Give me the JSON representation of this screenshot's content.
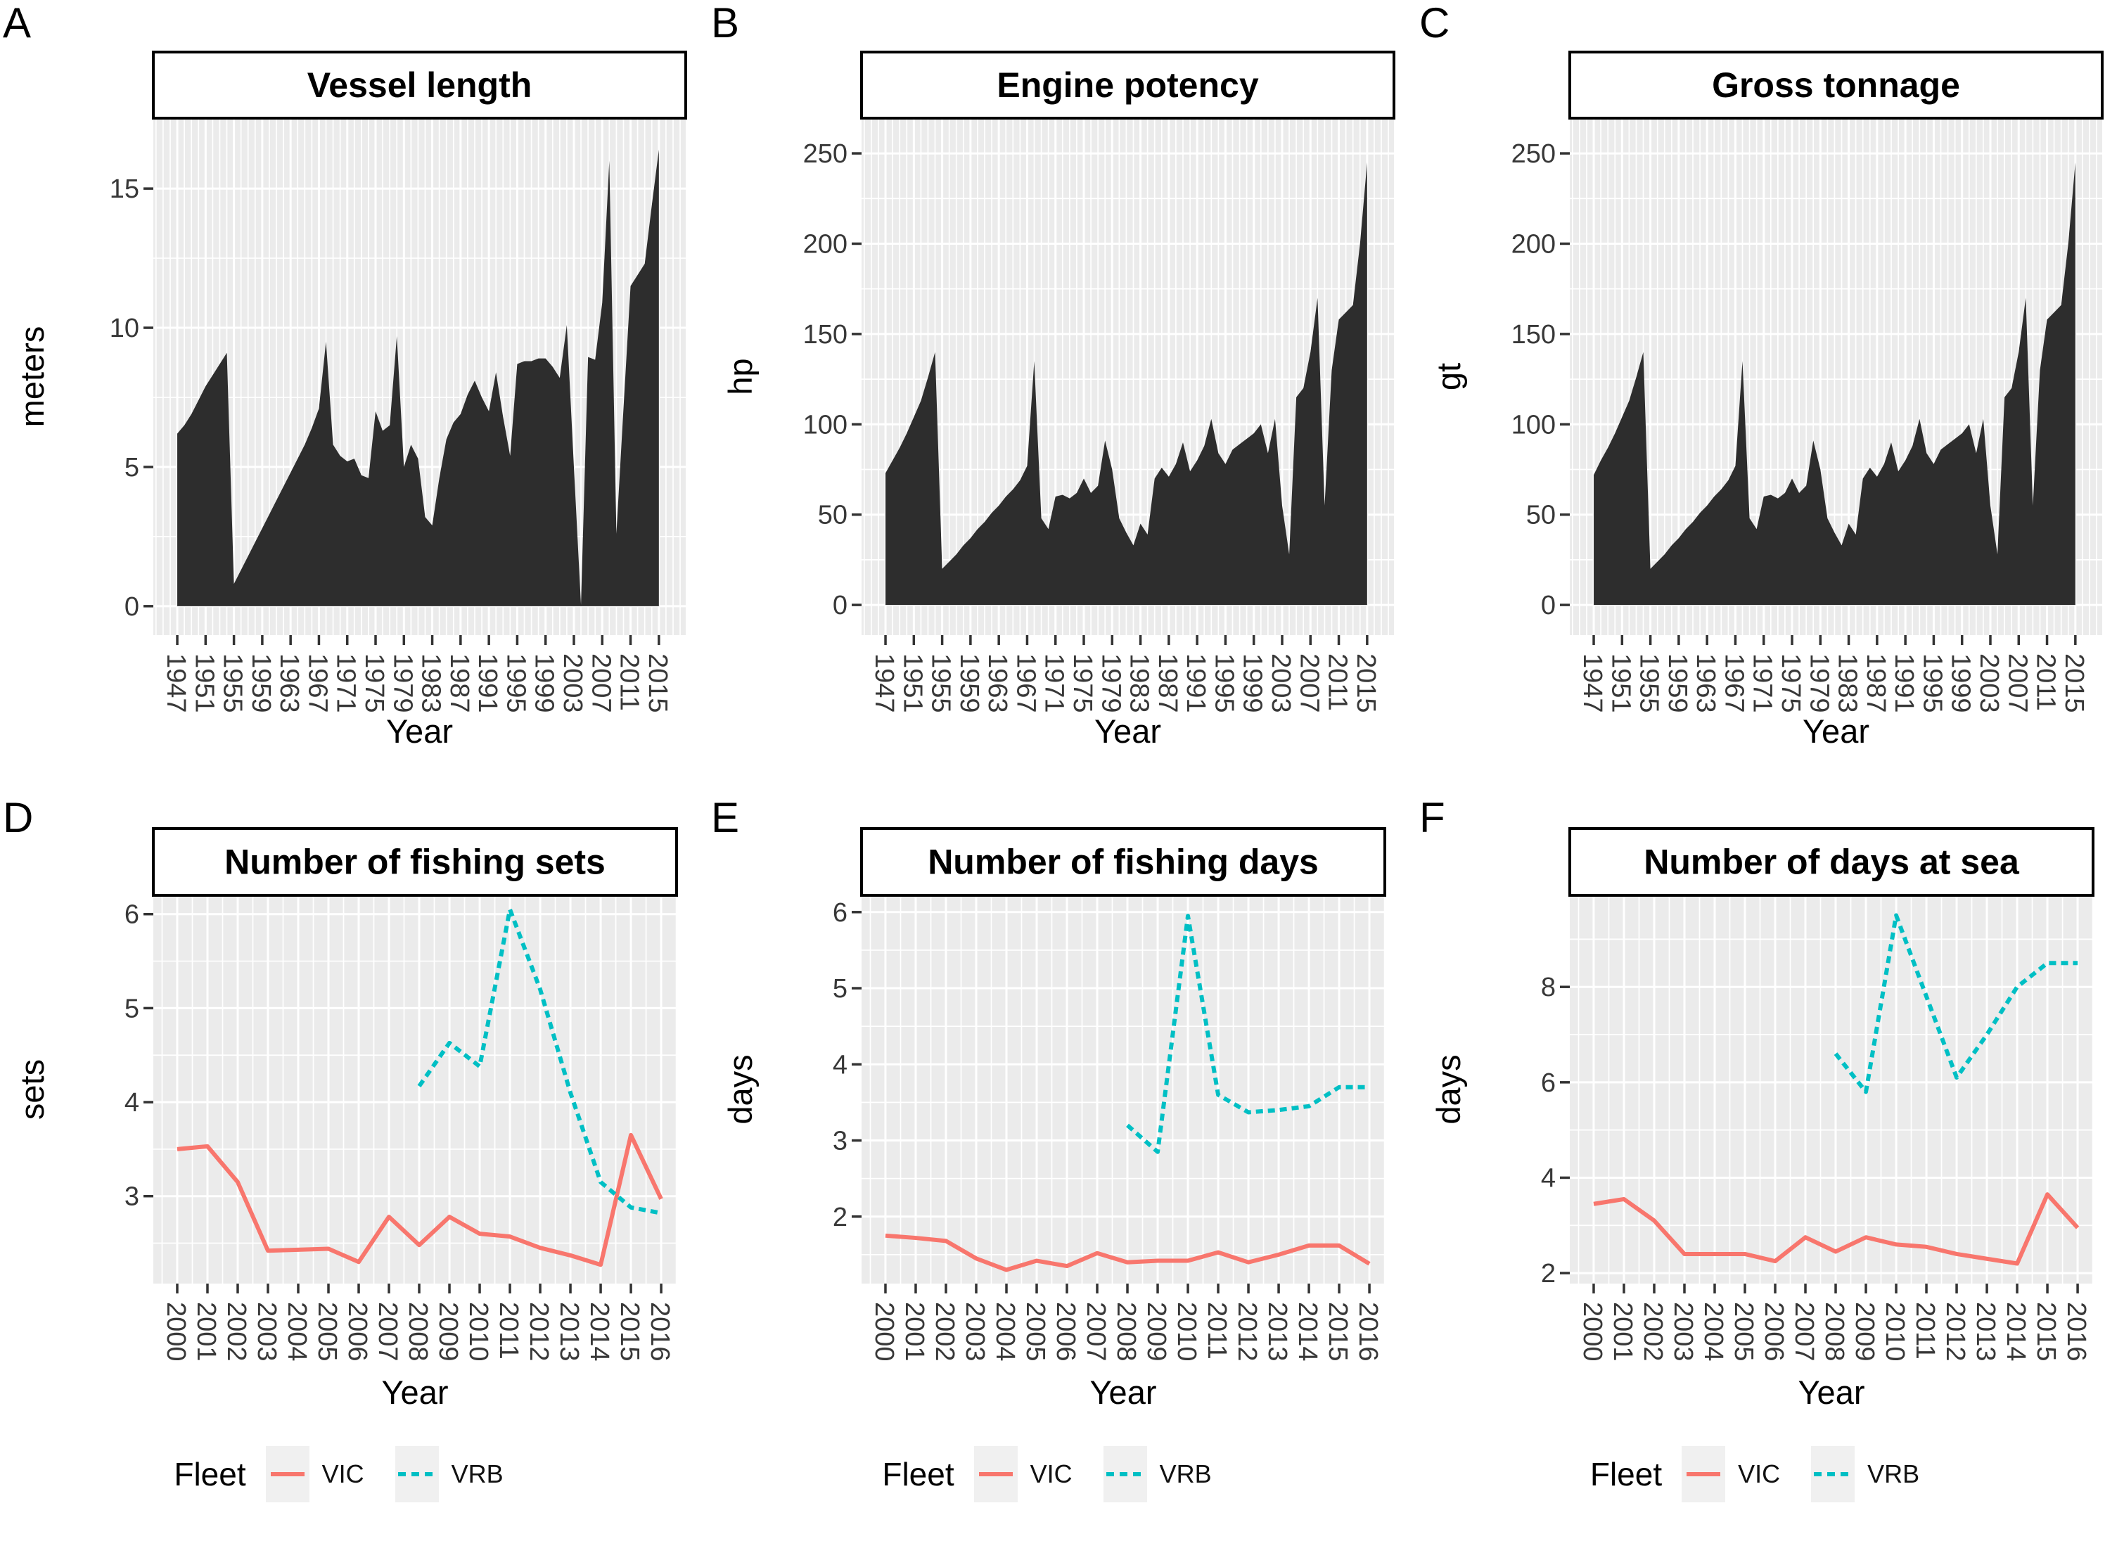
{
  "palette": {
    "area_fill": "#2d2d2d",
    "panel_bg": "#ebebeb",
    "grid": "#ffffff",
    "strip_bg": "#ffffff",
    "strip_border": "#000000",
    "tick_mark": "#333333",
    "tick_text": "#383838",
    "title_text": "#000000",
    "vic": "#F8766D",
    "vrb": "#00BFC4",
    "legend_key_bg": "#f0f0f0"
  },
  "legend": {
    "label": "Fleet",
    "entries": [
      {
        "label": "VIC",
        "style": "solid",
        "color": "#F8766D"
      },
      {
        "label": "VRB",
        "style": "dashed",
        "color": "#00BFC4"
      }
    ]
  },
  "chart_data": [
    {
      "id": "A",
      "letter": "A",
      "type": "area",
      "row": "top",
      "title": "Vessel length",
      "xlabel": "Year",
      "ylabel": "meters",
      "x_start": 1947,
      "x_labels": [
        "1947",
        "1951",
        "1955",
        "1959",
        "1963",
        "1967",
        "1971",
        "1975",
        "1979",
        "1983",
        "1987",
        "1991",
        "1995",
        "1999",
        "2003",
        "2007",
        "2011",
        "2015"
      ],
      "x_major_anchor": 1947,
      "x_major_step": 4,
      "x_minor_step": 1,
      "xlim": [
        1943.62,
        2018.79
      ],
      "ylim": [
        -1.04,
        17.53
      ],
      "yticks": [
        0,
        5,
        10,
        15
      ],
      "values": [
        6.2,
        6.5,
        6.9,
        7.4,
        7.9,
        8.3,
        8.7,
        9.1,
        0.8,
        1.3,
        1.8,
        2.3,
        2.8,
        3.3,
        3.8,
        4.3,
        4.8,
        5.3,
        5.8,
        6.4,
        7.1,
        9.5,
        5.8,
        5.4,
        5.2,
        5.3,
        4.7,
        4.6,
        7.0,
        6.3,
        6.5,
        9.7,
        5.0,
        5.8,
        5.3,
        3.2,
        2.9,
        4.6,
        6.0,
        6.6,
        6.9,
        7.6,
        8.1,
        7.5,
        7.0,
        8.4,
        6.8,
        5.4,
        8.7,
        8.8,
        8.8,
        8.9,
        8.9,
        8.6,
        8.2,
        10.1,
        5.0,
        0.05,
        8.95,
        8.85,
        10.9,
        16.0,
        2.6,
        7.1,
        11.5,
        11.9,
        12.3,
        14.4,
        16.4
      ]
    },
    {
      "id": "B",
      "letter": "B",
      "type": "area",
      "row": "top",
      "title": "Engine potency",
      "xlabel": "Year",
      "ylabel": "hp",
      "x_start": 1947,
      "x_labels": [
        "1947",
        "1951",
        "1955",
        "1959",
        "1963",
        "1967",
        "1971",
        "1975",
        "1979",
        "1983",
        "1987",
        "1991",
        "1995",
        "1999",
        "2003",
        "2007",
        "2011",
        "2015"
      ],
      "x_major_anchor": 1947,
      "x_major_step": 4,
      "x_minor_step": 1,
      "xlim": [
        1943.62,
        2018.79
      ],
      "ylim": [
        -16.7,
        269.5
      ],
      "yticks": [
        0,
        50,
        100,
        150,
        200,
        250
      ],
      "values": [
        73,
        80,
        87,
        95,
        104,
        113,
        126,
        140,
        20,
        24,
        28,
        33,
        37,
        42,
        46,
        51,
        55,
        60,
        64,
        69,
        77,
        135,
        48,
        42,
        60,
        61,
        59,
        62,
        70,
        62,
        66,
        91,
        75,
        48,
        40,
        33,
        45,
        39,
        70,
        76,
        71,
        78,
        90,
        74,
        80,
        88,
        103,
        84,
        78,
        86,
        89,
        92,
        95,
        100,
        84,
        103,
        55,
        28,
        115,
        120,
        140,
        170,
        55,
        130,
        158,
        162,
        166,
        200,
        245
      ]
    },
    {
      "id": "C",
      "letter": "C",
      "type": "area",
      "row": "top",
      "title": "Gross tonnage",
      "xlabel": "Year",
      "ylabel": "gt",
      "x_start": 1947,
      "x_labels": [
        "1947",
        "1951",
        "1955",
        "1959",
        "1963",
        "1967",
        "1971",
        "1975",
        "1979",
        "1983",
        "1987",
        "1991",
        "1995",
        "1999",
        "2003",
        "2007",
        "2011",
        "2015"
      ],
      "x_major_anchor": 1947,
      "x_major_step": 4,
      "x_minor_step": 1,
      "xlim": [
        1943.62,
        2018.79
      ],
      "ylim": [
        -16.7,
        269.5
      ],
      "yticks": [
        0,
        50,
        100,
        150,
        200,
        250
      ],
      "values": [
        72,
        80,
        87,
        95,
        104,
        113,
        126,
        140,
        20,
        24,
        28,
        33,
        37,
        42,
        46,
        51,
        55,
        60,
        64,
        69,
        77,
        135,
        48,
        42,
        60,
        61,
        59,
        62,
        70,
        62,
        66,
        91,
        75,
        48,
        40,
        33,
        45,
        39,
        70,
        76,
        71,
        78,
        90,
        74,
        80,
        88,
        103,
        84,
        78,
        86,
        89,
        92,
        95,
        100,
        84,
        103,
        55,
        28,
        115,
        120,
        140,
        170,
        55,
        130,
        158,
        162,
        166,
        200,
        245
      ]
    },
    {
      "id": "D",
      "letter": "D",
      "type": "line",
      "row": "bottom",
      "title": "Number of fishing sets",
      "xlabel": "Year",
      "ylabel": "sets",
      "x_labels": [
        "2000",
        "2001",
        "2002",
        "2003",
        "2004",
        "2005",
        "2006",
        "2007",
        "2008",
        "2009",
        "2010",
        "2011",
        "2012",
        "2013",
        "2014",
        "2015",
        "2016"
      ],
      "x_major_anchor": 2000,
      "x_major_step": 1,
      "x_minor_step": 0.5,
      "xlim": [
        1999.21,
        2016.51
      ],
      "ylim": [
        2.07,
        6.2
      ],
      "yticks": [
        3,
        4,
        5,
        6
      ],
      "series": [
        {
          "name": "VIC",
          "color": "#F8766D",
          "style": "solid",
          "x_start": 2000,
          "values": [
            3.5,
            3.53,
            3.15,
            2.42,
            2.43,
            2.44,
            2.3,
            2.78,
            2.48,
            2.78,
            2.6,
            2.57,
            2.45,
            2.37,
            2.27,
            3.65,
            2.97
          ]
        },
        {
          "name": "VRB",
          "color": "#00BFC4",
          "style": "dashed",
          "x_start": 2008,
          "values": [
            4.17,
            4.63,
            4.38,
            6.05,
            5.2,
            4.1,
            3.15,
            2.88,
            2.82
          ]
        }
      ]
    },
    {
      "id": "E",
      "letter": "E",
      "type": "line",
      "row": "bottom",
      "title": "Number of fishing days",
      "xlabel": "Year",
      "ylabel": "days",
      "x_labels": [
        "2000",
        "2001",
        "2002",
        "2003",
        "2004",
        "2005",
        "2006",
        "2007",
        "2008",
        "2009",
        "2010",
        "2011",
        "2012",
        "2013",
        "2014",
        "2015",
        "2016"
      ],
      "x_major_anchor": 2000,
      "x_major_step": 1,
      "x_minor_step": 0.5,
      "xlim": [
        1999.21,
        2016.51
      ],
      "ylim": [
        1.12,
        6.22
      ],
      "yticks": [
        2,
        3,
        4,
        5,
        6
      ],
      "series": [
        {
          "name": "VIC",
          "color": "#F8766D",
          "style": "solid",
          "x_start": 2000,
          "values": [
            1.75,
            1.72,
            1.68,
            1.45,
            1.3,
            1.42,
            1.35,
            1.52,
            1.4,
            1.42,
            1.42,
            1.53,
            1.4,
            1.5,
            1.62,
            1.62,
            1.38
          ]
        },
        {
          "name": "VRB",
          "color": "#00BFC4",
          "style": "dashed",
          "x_start": 2008,
          "values": [
            3.2,
            2.85,
            5.95,
            3.6,
            3.37,
            3.4,
            3.45,
            3.7,
            3.7
          ]
        }
      ]
    },
    {
      "id": "F",
      "letter": "F",
      "type": "line",
      "row": "bottom",
      "title": "Number of days at sea",
      "xlabel": "Year",
      "ylabel": "days",
      "x_labels": [
        "2000",
        "2001",
        "2002",
        "2003",
        "2004",
        "2005",
        "2006",
        "2007",
        "2008",
        "2009",
        "2010",
        "2011",
        "2012",
        "2013",
        "2014",
        "2015",
        "2016"
      ],
      "x_major_anchor": 2000,
      "x_major_step": 1,
      "x_minor_step": 0.5,
      "xlim": [
        1999.21,
        2016.51
      ],
      "ylim": [
        1.78,
        9.92
      ],
      "yticks": [
        2,
        4,
        6,
        8
      ],
      "series": [
        {
          "name": "VIC",
          "color": "#F8766D",
          "style": "solid",
          "x_start": 2000,
          "values": [
            3.45,
            3.55,
            3.1,
            2.4,
            2.4,
            2.4,
            2.25,
            2.75,
            2.45,
            2.75,
            2.6,
            2.55,
            2.4,
            2.3,
            2.2,
            3.65,
            2.95
          ]
        },
        {
          "name": "VRB",
          "color": "#00BFC4",
          "style": "dashed",
          "x_start": 2008,
          "values": [
            6.6,
            5.8,
            9.5,
            7.8,
            6.1,
            7.0,
            8.0,
            8.5,
            8.5
          ]
        }
      ]
    }
  ]
}
